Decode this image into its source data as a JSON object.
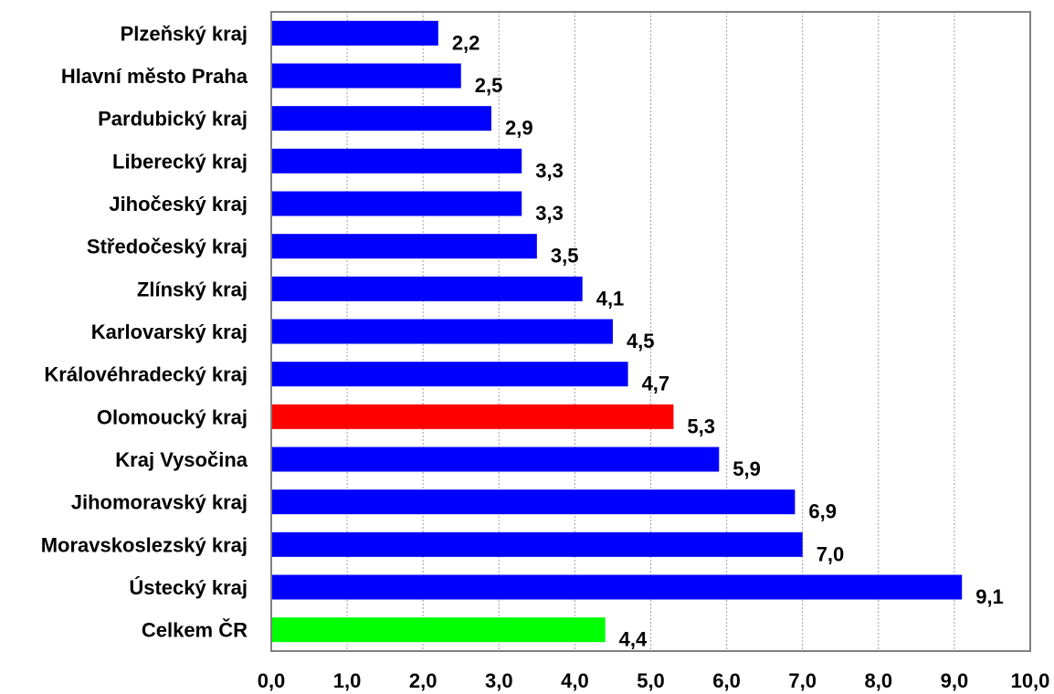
{
  "chart_data": {
    "type": "bar",
    "orientation": "horizontal",
    "title": "",
    "xlabel": "",
    "ylabel": "",
    "xlim": [
      0,
      10
    ],
    "x_tick_step": 1,
    "x_tick_labels": [
      "0,0",
      "1,0",
      "2,0",
      "3,0",
      "4,0",
      "5,0",
      "6,0",
      "7,0",
      "8,0",
      "9,0",
      "10,0"
    ],
    "grid": "vertical, dotted",
    "legend": "none",
    "categories": [
      "Plzeňský kraj",
      "Hlavní město Praha",
      "Pardubický kraj",
      "Liberecký kraj",
      "Jihočeský kraj",
      "Středočeský kraj",
      "Zlínský kraj",
      "Karlovarský kraj",
      "Královéhradecký kraj",
      "Olomoucký kraj",
      "Kraj Vysočina",
      "Jihomoravský kraj",
      "Moravskoslezský kraj",
      "Ústecký kraj",
      "Celkem ČR"
    ],
    "values": [
      2.2,
      2.5,
      2.9,
      3.3,
      3.3,
      3.5,
      4.1,
      4.5,
      4.7,
      5.3,
      5.9,
      6.9,
      7.0,
      9.1,
      4.4
    ],
    "value_labels": [
      "2,2",
      "2,5",
      "2,9",
      "3,3",
      "3,3",
      "3,5",
      "4,1",
      "4,5",
      "4,7",
      "5,3",
      "5,9",
      "6,9",
      "7,0",
      "9,1",
      "4,4"
    ],
    "colors": {
      "default": "#0000ff",
      "highlight": "#ff0000",
      "total": "#00ff00",
      "grid": "#a0a0a0",
      "frame": "#808080"
    },
    "bar_colors": [
      "default",
      "default",
      "default",
      "default",
      "default",
      "default",
      "default",
      "default",
      "default",
      "highlight",
      "default",
      "default",
      "default",
      "default",
      "total"
    ]
  }
}
